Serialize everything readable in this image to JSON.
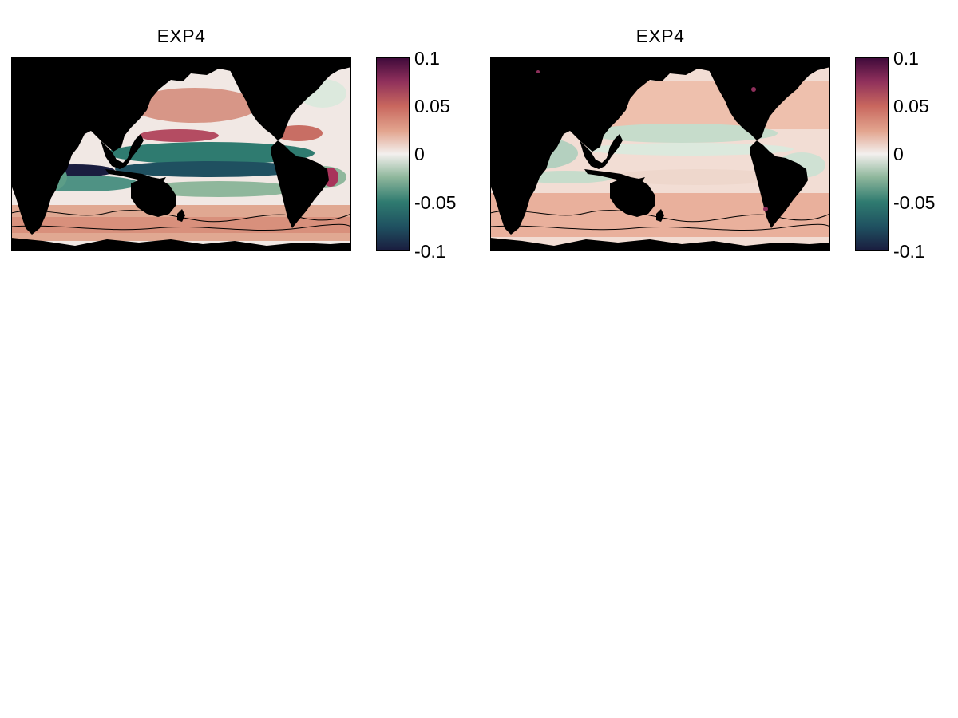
{
  "panels": [
    {
      "title": "EXP4",
      "colorbar": {
        "ticks": [
          "0.1",
          "0.05",
          "0",
          "-0.05",
          "-0.1"
        ],
        "range": [
          -0.1,
          0.1
        ]
      }
    },
    {
      "title": "EXP4",
      "colorbar": {
        "ticks": [
          "0.1",
          "0.05",
          "0",
          "-0.05",
          "-0.1"
        ],
        "range": [
          -0.1,
          0.1
        ]
      }
    }
  ],
  "colormap": [
    "#1a1d3f",
    "#1f5060",
    "#2f7b70",
    "#8fb79c",
    "#f3f0ee",
    "#e2a48e",
    "#c8675e",
    "#8e2f5b",
    "#3f0a3a"
  ],
  "land_color": "#000000",
  "ocean_neutral_color": "#f3f0ee"
}
